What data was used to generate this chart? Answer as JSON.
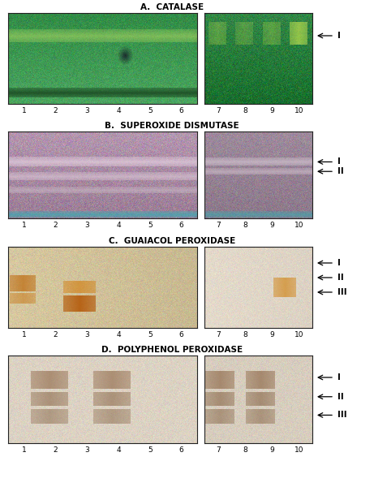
{
  "title_A": "A.  CATALASE",
  "title_B": "B.  SUPEROXIDE DISMUTASE",
  "title_C": "C.  GUAIACOL PEROXIDASE",
  "title_D": "D.  POLYPHENOL PEROXIDASE",
  "lane_labels_left": [
    "1",
    "2",
    "3",
    "4",
    "5",
    "6"
  ],
  "lane_labels_right": [
    "7",
    "8",
    "9",
    "10"
  ],
  "fig_width": 4.61,
  "fig_height": 6.0,
  "fig_dpi": 100
}
